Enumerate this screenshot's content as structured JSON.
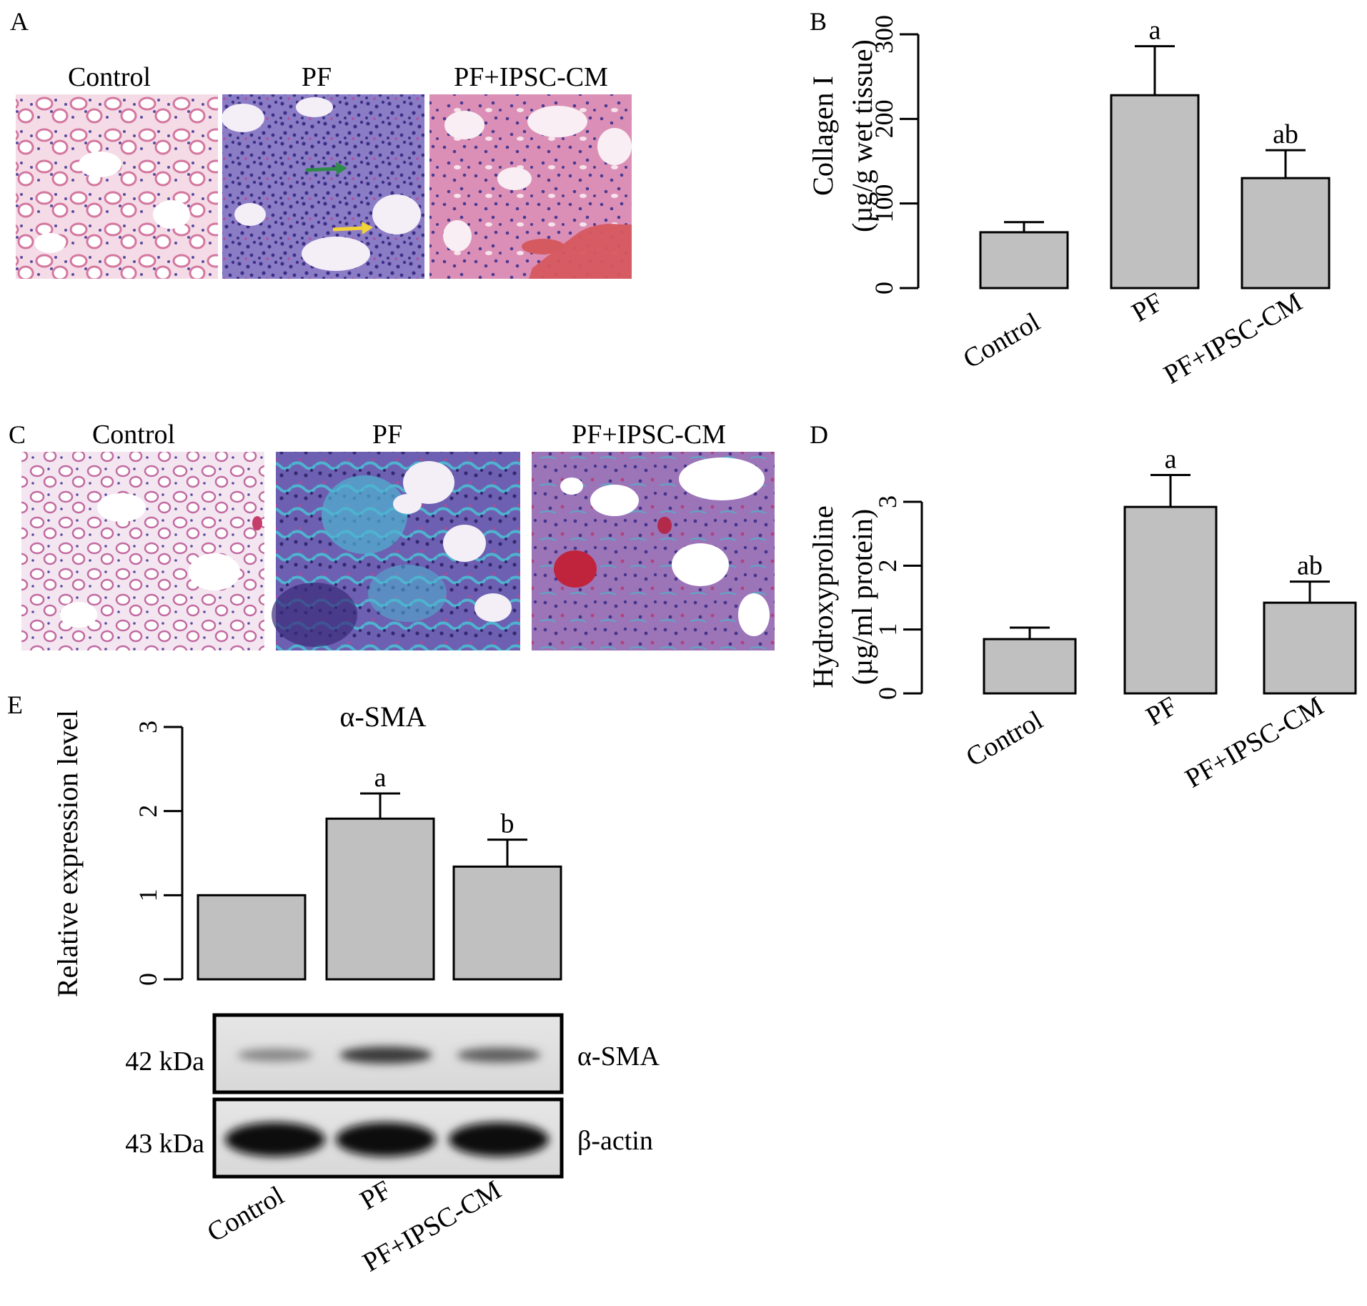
{
  "panels": {
    "A": {
      "letter": "A",
      "images": [
        {
          "label": "Control",
          "tissue": "he-normal"
        },
        {
          "label": "PF",
          "tissue": "he-fibrosis"
        },
        {
          "label": "PF+IPSC-CM",
          "tissue": "he-treated"
        }
      ]
    },
    "C": {
      "letter": "C",
      "images": [
        {
          "label": "Control",
          "tissue": "masson-normal"
        },
        {
          "label": "PF",
          "tissue": "masson-fibrosis"
        },
        {
          "label": "PF+IPSC-CM",
          "tissue": "masson-treated"
        }
      ]
    },
    "E_blot": {
      "rows": [
        {
          "kda": "42 kDa",
          "protein": "α-SMA",
          "band_intensity": [
            0.35,
            0.75,
            0.55
          ]
        },
        {
          "kda": "43 kDa",
          "protein": "β-actin",
          "band_intensity": [
            1.0,
            1.0,
            1.0
          ]
        }
      ],
      "lanes": [
        "Control",
        "PF",
        "PF+IPSC-CM"
      ]
    }
  },
  "colors": {
    "bar_fill": "#c0c0c0",
    "axis": "#000000",
    "he_pink": "#e28fb4",
    "he_purple": "#5b4aa0",
    "masson_blue": "#4fa8c8",
    "blood_red": "#c9454d"
  },
  "chart_data": [
    {
      "id": "B",
      "letter": "B",
      "type": "bar",
      "title": "",
      "categories": [
        "Control",
        "PF",
        "PF+IPSC-CM"
      ],
      "values": [
        66,
        228,
        130
      ],
      "errors": [
        12,
        58,
        33
      ],
      "sig_labels": [
        "",
        "a",
        "ab"
      ],
      "ylabel": [
        "Collagen I",
        "(µg/g wet tissue)"
      ],
      "ylim": [
        0,
        300
      ],
      "yticks": [
        0,
        100,
        200,
        300
      ],
      "grid": false
    },
    {
      "id": "D",
      "letter": "D",
      "type": "bar",
      "title": "",
      "categories": [
        "Control",
        "PF",
        "PF+IPSC-CM"
      ],
      "values": [
        0.85,
        2.92,
        1.42
      ],
      "errors": [
        0.18,
        0.5,
        0.33
      ],
      "sig_labels": [
        "",
        "a",
        "ab"
      ],
      "ylabel": [
        "Hydroxyproline",
        "(µg/ml protein)"
      ],
      "ylim": [
        0,
        3
      ],
      "yticks": [
        0,
        1,
        2,
        3
      ],
      "grid": false
    },
    {
      "id": "E",
      "letter": "E",
      "type": "bar",
      "title": "α-SMA",
      "categories": [
        "Control",
        "PF",
        "PF+IPSC-CM"
      ],
      "values": [
        1.0,
        1.91,
        1.34
      ],
      "errors": [
        0,
        0.3,
        0.32
      ],
      "sig_labels": [
        "",
        "a",
        "b"
      ],
      "ylabel": [
        "Relative expression level"
      ],
      "ylim": [
        0,
        3
      ],
      "yticks": [
        0,
        1,
        2,
        3
      ],
      "grid": false
    }
  ]
}
